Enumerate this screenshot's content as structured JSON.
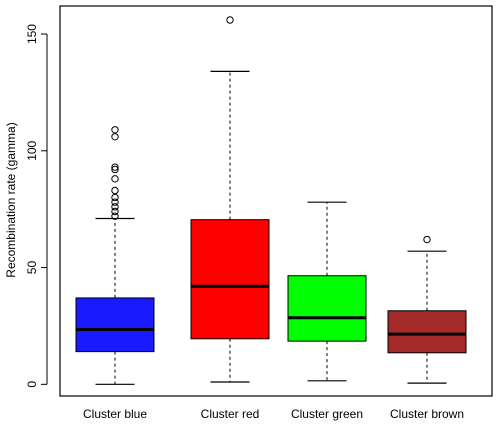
{
  "chart_data": {
    "type": "boxplot",
    "ylabel": "Recombination rate (gamma)",
    "ylim": [
      -5,
      162
    ],
    "yticks": [
      0,
      50,
      100,
      150
    ],
    "grid": false,
    "legend": "none",
    "categories": [
      "Cluster blue",
      "Cluster red",
      "Cluster green",
      "Cluster brown"
    ],
    "boxes": [
      {
        "name": "Cluster blue",
        "color": "#1a1aff",
        "whisker_low": 0,
        "q1": 14,
        "median": 23.5,
        "q3": 37,
        "whisker_high": 71,
        "outliers": [
          72,
          74,
          76,
          78,
          80,
          83,
          88,
          92,
          93,
          106,
          109
        ]
      },
      {
        "name": "Cluster red",
        "color": "#ff0000",
        "whisker_low": 1,
        "q1": 19.5,
        "median": 42,
        "q3": 70.5,
        "whisker_high": 134,
        "outliers": [
          156
        ]
      },
      {
        "name": "Cluster green",
        "color": "#00ff00",
        "whisker_low": 1.5,
        "q1": 18.5,
        "median": 28.5,
        "q3": 46.5,
        "whisker_high": 78,
        "outliers": []
      },
      {
        "name": "Cluster brown",
        "color": "#a52a2a",
        "whisker_low": 0.5,
        "q1": 13.5,
        "median": 21.5,
        "q3": 31.5,
        "whisker_high": 57,
        "outliers": [
          62
        ]
      }
    ]
  }
}
